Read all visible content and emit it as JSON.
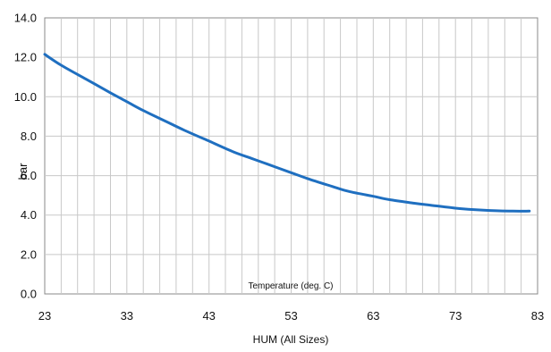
{
  "chart_data": {
    "type": "line",
    "title": "",
    "xlabel": "Temperature (deg. C)",
    "ylabel": "bar",
    "caption": "HUM (All Sizes)",
    "xlim": [
      23,
      83
    ],
    "ylim": [
      0,
      14
    ],
    "x_ticks": [
      23,
      33,
      43,
      53,
      63,
      73,
      83
    ],
    "y_ticks": [
      0,
      2,
      4,
      6,
      8,
      10,
      12,
      14
    ],
    "y_tick_labels": [
      "0.0",
      "2.0",
      "4.0",
      "6.0",
      "8.0",
      "10.0",
      "12.0",
      "14.0"
    ],
    "grid": true,
    "legend": "none",
    "series": [
      {
        "color": "#1f6fc0",
        "x": [
          23,
          25,
          28,
          31,
          33,
          35,
          38,
          40,
          43,
          46,
          48,
          50,
          53,
          55,
          58,
          60,
          63,
          65,
          68,
          70,
          73,
          75,
          78,
          80,
          82
        ],
        "y": [
          12.15,
          11.6,
          10.9,
          10.2,
          9.75,
          9.3,
          8.7,
          8.3,
          7.75,
          7.2,
          6.9,
          6.6,
          6.15,
          5.85,
          5.45,
          5.2,
          4.95,
          4.78,
          4.6,
          4.5,
          4.35,
          4.28,
          4.22,
          4.2,
          4.2
        ]
      }
    ]
  }
}
